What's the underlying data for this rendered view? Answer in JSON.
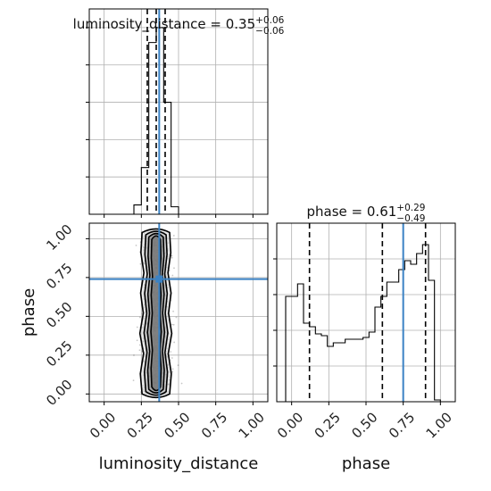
{
  "chart_data": [
    {
      "type": "histogram",
      "panel": "luminosity_distance",
      "title_parameter": "luminosity_distance",
      "title_value": "0.35",
      "title_upper": "+0.06",
      "title_lower": "−0.06",
      "bin_edges": [
        0.0,
        0.05,
        0.1,
        0.15,
        0.2,
        0.25,
        0.3,
        0.35,
        0.4,
        0.45,
        0.5,
        0.55,
        0.6,
        0.65,
        0.7,
        0.75,
        0.8,
        0.85,
        0.9,
        0.95,
        1.0
      ],
      "counts": [
        0,
        0,
        0,
        0,
        0.05,
        0.25,
        0.92,
        1.0,
        0.6,
        0.04,
        0,
        0,
        0,
        0,
        0,
        0,
        0,
        0,
        0,
        0
      ],
      "quantiles": [
        0.29,
        0.35,
        0.41
      ],
      "truth": 0.37,
      "xlim": [
        -0.1,
        1.1
      ],
      "grid": true
    },
    {
      "type": "scatter",
      "panel": "2d-density",
      "xlabel": "luminosity_distance",
      "ylabel": "phase",
      "xlim": [
        -0.1,
        1.1
      ],
      "ylim": [
        -0.05,
        1.1
      ],
      "xticks": [
        "0.00",
        "0.25",
        "0.50",
        "0.75",
        "1.00"
      ],
      "yticks": [
        "0.00",
        "0.25",
        "0.50",
        "0.75",
        "1.00"
      ],
      "truth": {
        "x": 0.37,
        "y": 0.74
      },
      "contour_levels": 4,
      "grid": true
    },
    {
      "type": "histogram",
      "panel": "phase",
      "title_parameter": "phase",
      "title_value": "0.61",
      "title_upper": "+0.29",
      "title_lower": "−0.49",
      "xlabel": "phase",
      "bin_edges": [
        -0.04,
        0.0,
        0.04,
        0.08,
        0.12,
        0.16,
        0.2,
        0.24,
        0.28,
        0.32,
        0.36,
        0.4,
        0.44,
        0.48,
        0.52,
        0.56,
        0.6,
        0.64,
        0.68,
        0.72,
        0.76,
        0.8,
        0.84,
        0.88,
        0.92,
        0.96,
        1.0,
        1.04
      ],
      "counts": [
        0.59,
        0.59,
        0.66,
        0.44,
        0.42,
        0.38,
        0.37,
        0.31,
        0.33,
        0.33,
        0.35,
        0.35,
        0.35,
        0.36,
        0.39,
        0.53,
        0.59,
        0.67,
        0.67,
        0.74,
        0.79,
        0.77,
        0.83,
        0.88,
        0.68,
        0.01,
        0.0
      ],
      "quantiles": [
        0.12,
        0.61,
        0.9
      ],
      "truth": 0.75,
      "xlim": [
        -0.1,
        1.1
      ],
      "xticks": [
        "0.00",
        "0.25",
        "0.50",
        "0.75",
        "1.00"
      ],
      "grid": true
    }
  ]
}
